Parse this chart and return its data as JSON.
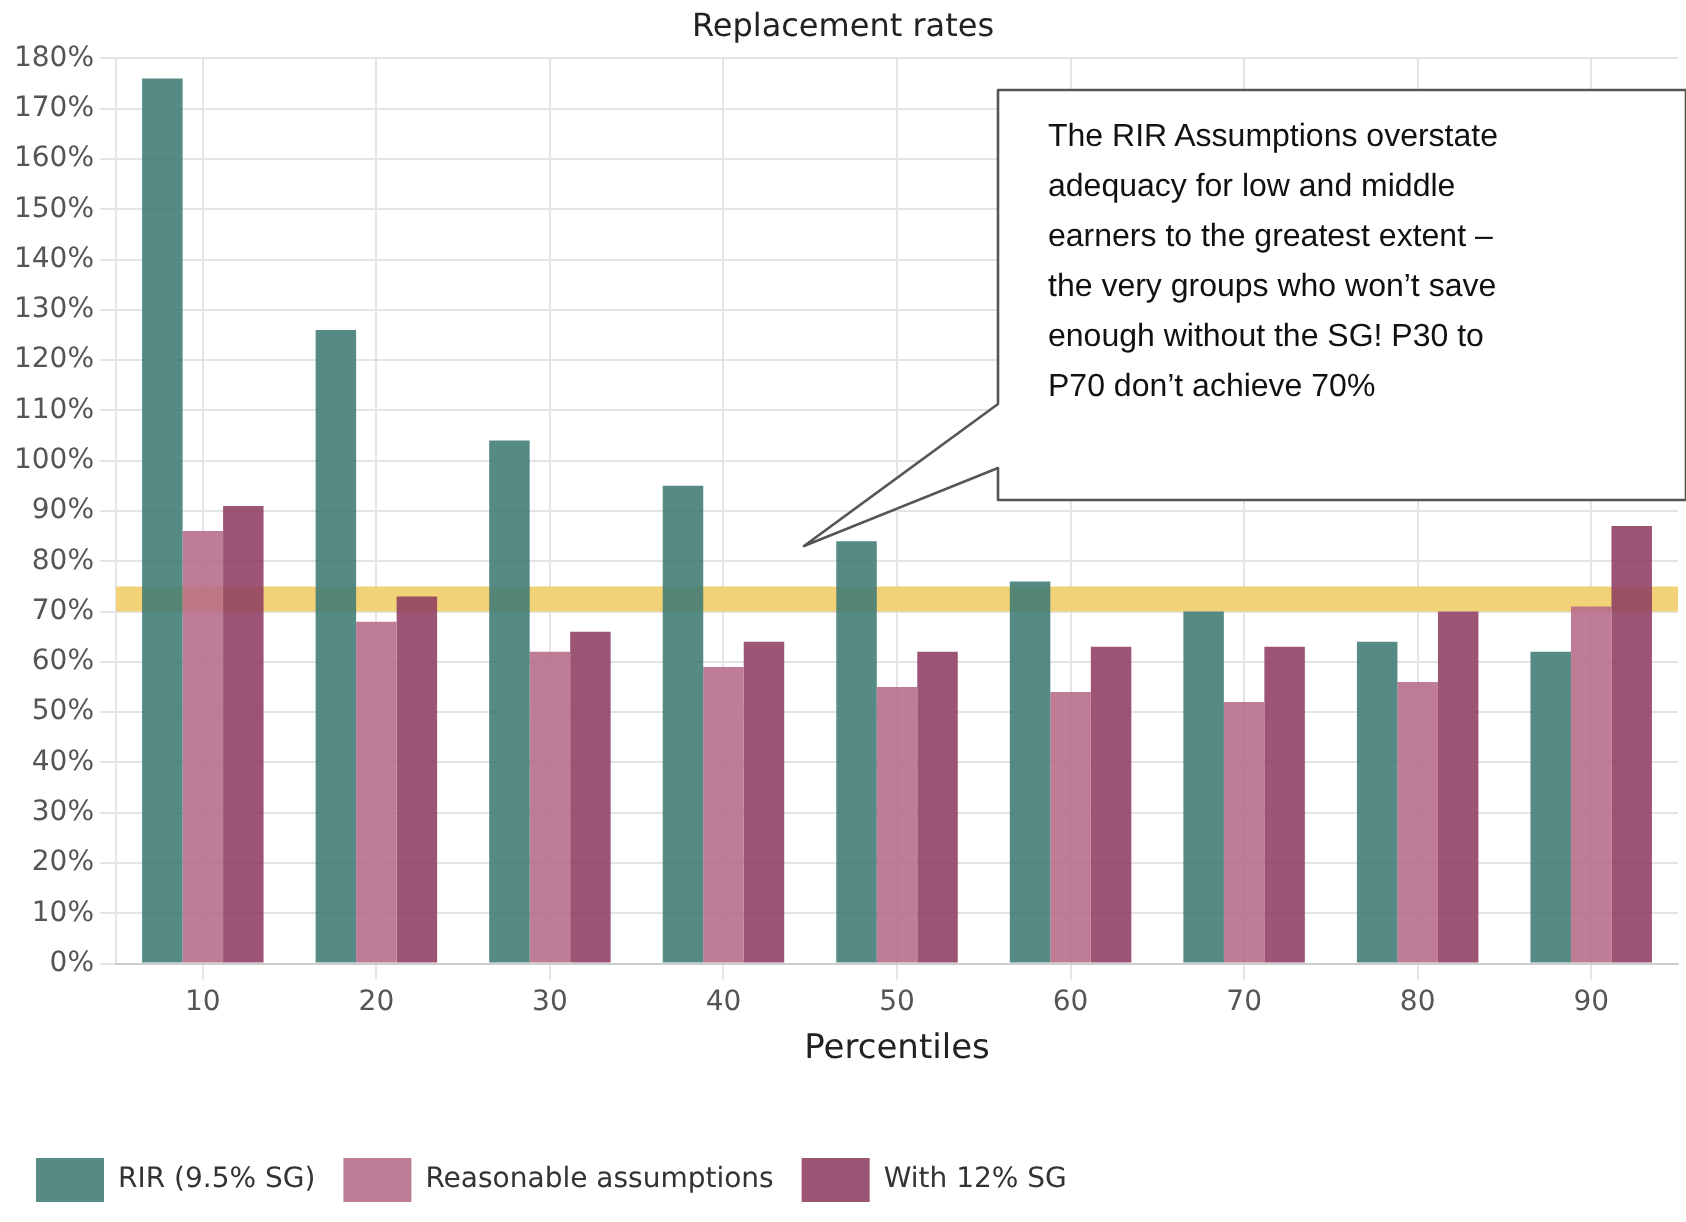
{
  "chart_data": {
    "type": "bar",
    "title": "Replacement rates",
    "xlabel": "Percentiles",
    "categories": [
      "10",
      "20",
      "30",
      "40",
      "50",
      "60",
      "70",
      "80",
      "90"
    ],
    "series": [
      {
        "name": "RIR (9.5% SG)",
        "color": "#3f7a74",
        "values": [
          176,
          126,
          104,
          95,
          84,
          76,
          70,
          64,
          62
        ]
      },
      {
        "name": "Reasonable assumptions",
        "color": "#b56a87",
        "values": [
          86,
          68,
          62,
          59,
          55,
          54,
          52,
          56,
          71
        ]
      },
      {
        "name": "With 12% SG",
        "color": "#8e3e62",
        "values": [
          91,
          73,
          66,
          64,
          62,
          63,
          63,
          70,
          87
        ]
      }
    ],
    "ylim": [
      0,
      180
    ],
    "yticks": [
      {
        "value": 0,
        "label": "0%"
      },
      {
        "value": 10,
        "label": "10%"
      },
      {
        "value": 20,
        "label": "20%"
      },
      {
        "value": 30,
        "label": "30%"
      },
      {
        "value": 40,
        "label": "40%"
      },
      {
        "value": 50,
        "label": "50%"
      },
      {
        "value": 60,
        "label": "60%"
      },
      {
        "value": 70,
        "label": "70%"
      },
      {
        "value": 80,
        "label": "80%"
      },
      {
        "value": 90,
        "label": "90%"
      },
      {
        "value": 100,
        "label": "100%"
      },
      {
        "value": 110,
        "label": "110%"
      },
      {
        "value": 120,
        "label": "120%"
      },
      {
        "value": 130,
        "label": "130%"
      },
      {
        "value": 140,
        "label": "140%"
      },
      {
        "value": 150,
        "label": "150%"
      },
      {
        "value": 160,
        "label": "160%"
      },
      {
        "value": 170,
        "label": "170%"
      },
      {
        "value": 180,
        "label": "180%"
      }
    ],
    "bands": [
      {
        "axis": "y",
        "from": 70,
        "to": 75,
        "color": "#f0d070"
      }
    ],
    "annotations": [
      {
        "text": "The RIR Assumptions overstate adequacy for low and middle earners to the greatest extent – the very groups who won’t save enough without the SG! P30 to P70 don’t achieve 70%"
      }
    ],
    "grid": true,
    "legend": "bottom"
  }
}
